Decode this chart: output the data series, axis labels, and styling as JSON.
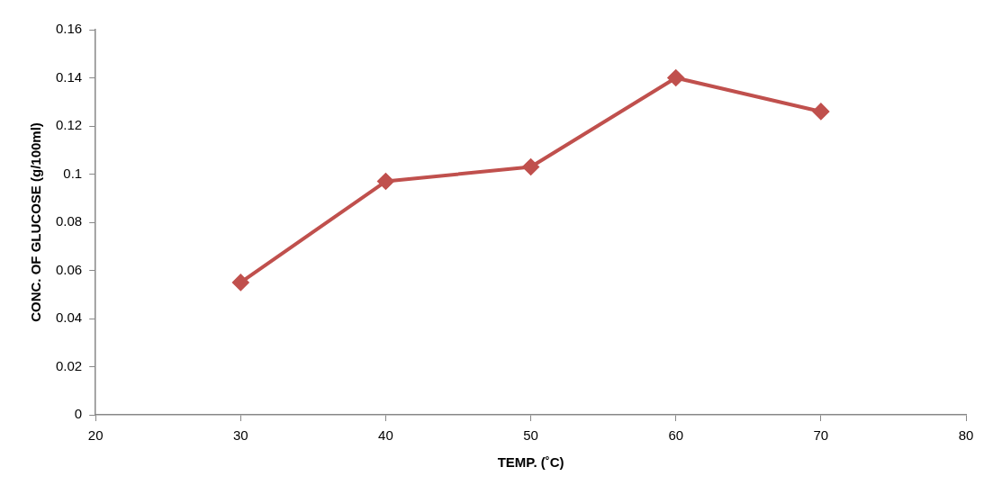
{
  "chart_data": {
    "type": "line",
    "xlabel": "TEMP. (˚C)",
    "ylabel": "CONC. OF GLUCOSE (g/100ml)",
    "x": [
      30,
      40,
      50,
      60,
      70
    ],
    "series": [
      {
        "color": "#c0504d",
        "values": [
          0.055,
          0.097,
          0.103,
          0.14,
          0.126
        ]
      }
    ],
    "xlim": [
      20,
      80
    ],
    "xticks": [
      20,
      30,
      40,
      50,
      60,
      70,
      80
    ],
    "ylim": [
      0,
      0.16
    ],
    "yticks": [
      0,
      0.02,
      0.04,
      0.06,
      0.08,
      0.1,
      0.12,
      0.14,
      0.16
    ],
    "grid": false,
    "legend": false,
    "marker": "diamond",
    "line_style": "solid"
  }
}
